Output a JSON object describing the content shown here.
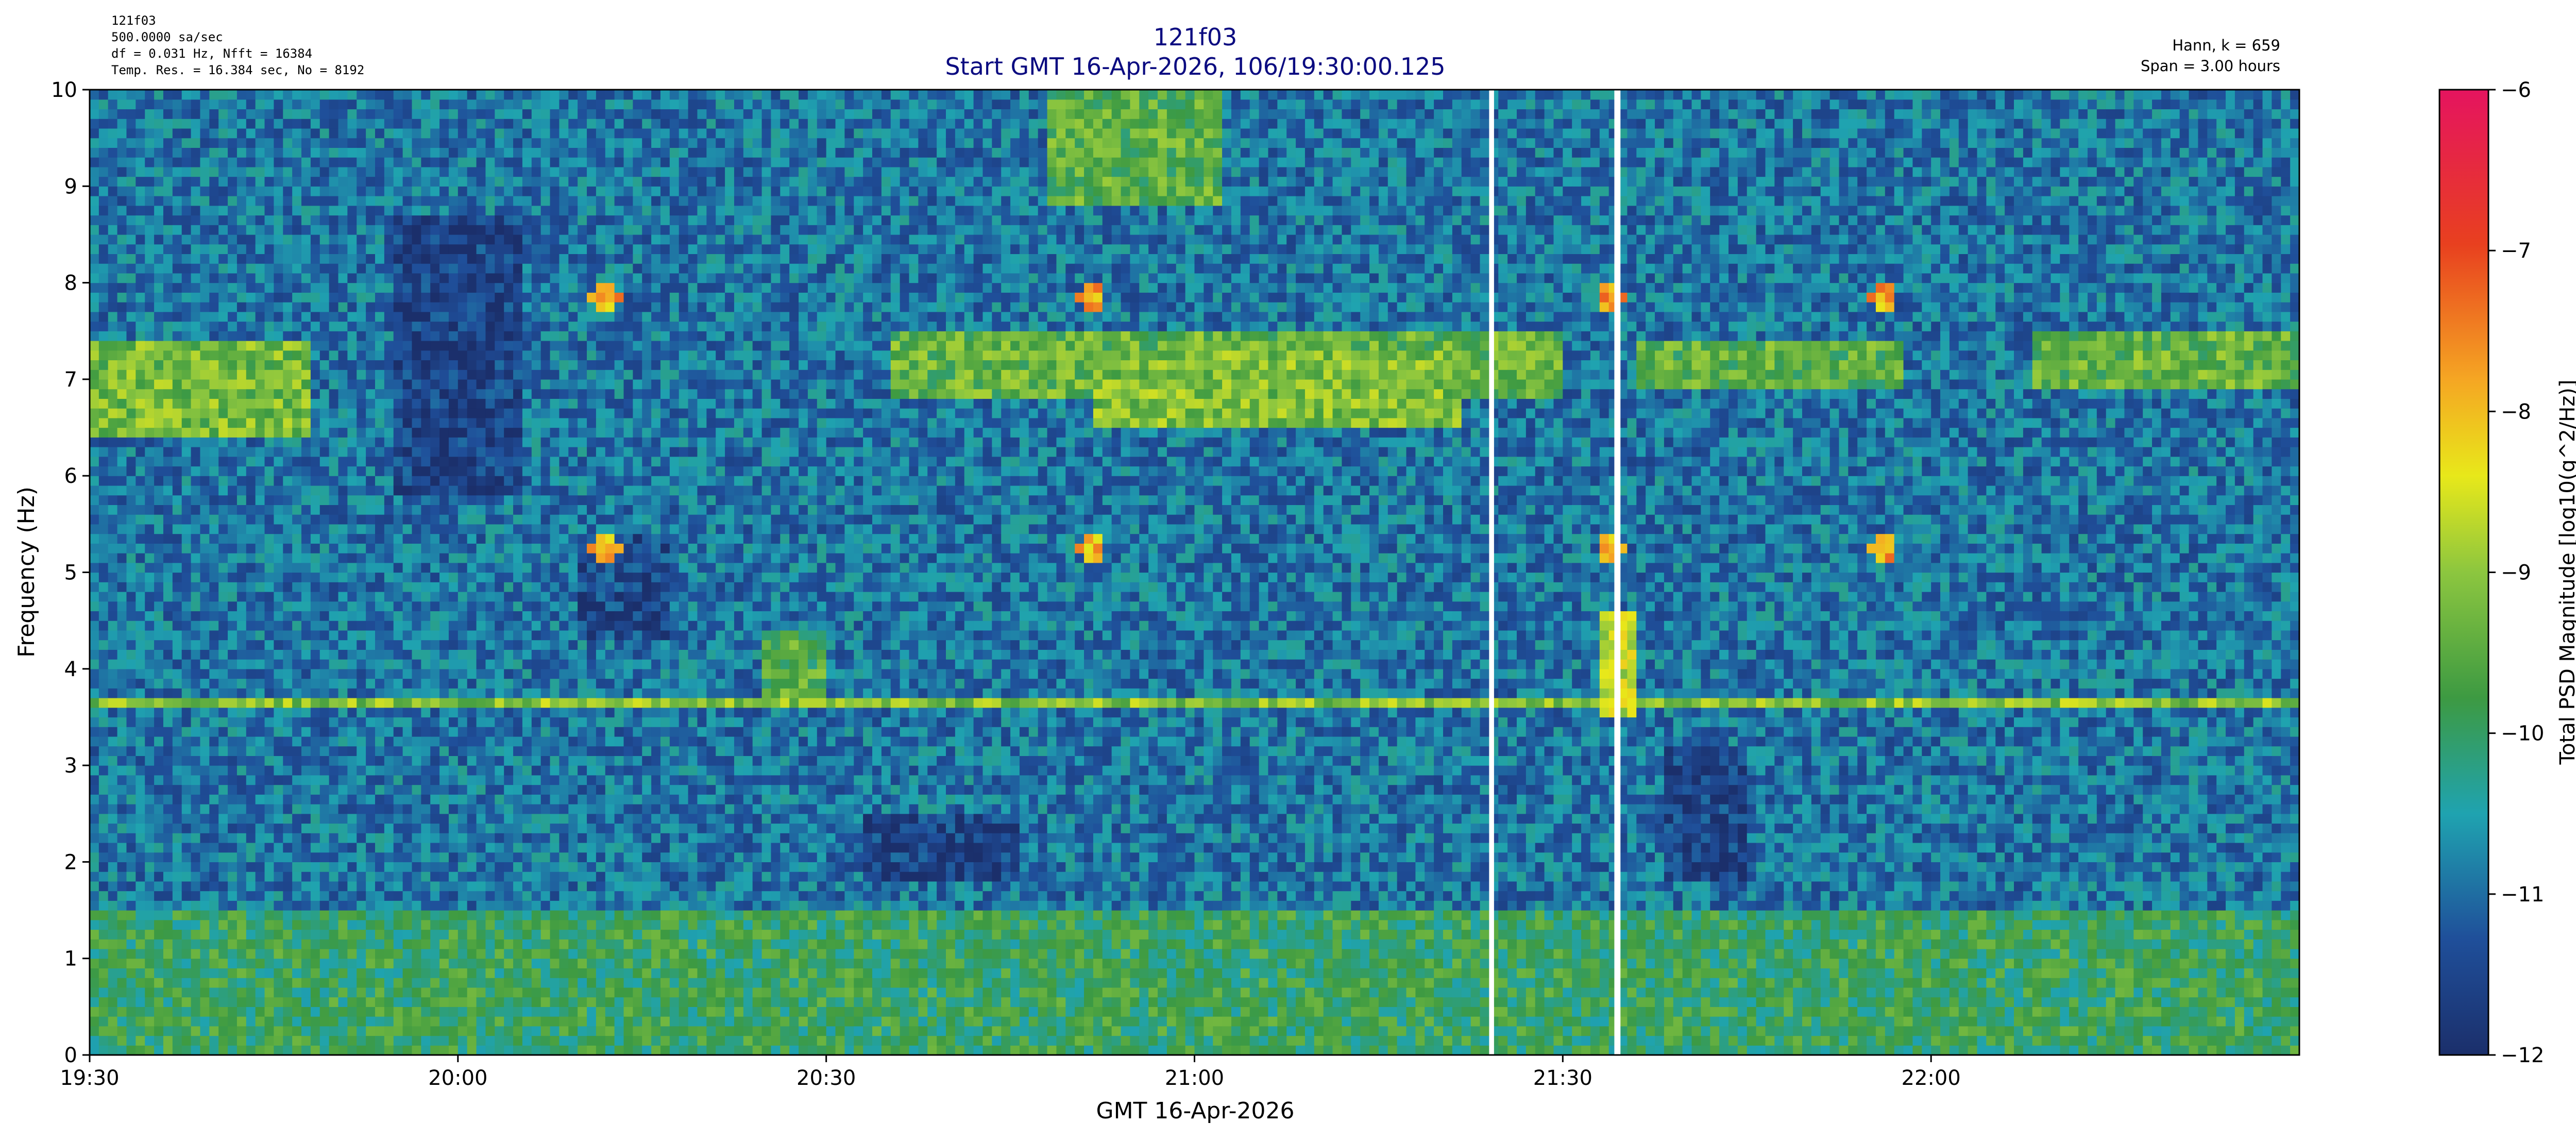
{
  "header": {
    "left_lines": [
      "121f03",
      "500.0000 sa/sec",
      "df = 0.031 Hz,  Nfft = 16384",
      "Temp. Res. = 16.384 sec, No = 8192"
    ],
    "title": "121f03",
    "subtitle": "Start GMT 16-Apr-2026, 106/19:30:00.125",
    "right_lines": [
      "Hann, k = 659",
      "Span = 3.00 hours"
    ]
  },
  "colors": {
    "title": "#0a0a80",
    "colormap": [
      "#1b2f6b",
      "#1f4f9a",
      "#1fa3b0",
      "#3d9a42",
      "#8cc63f",
      "#e8e81a",
      "#f5a623",
      "#e8401f",
      "#e5145f"
    ]
  },
  "chart_data": {
    "type": "heatmap",
    "xlabel": "GMT 16-Apr-2026",
    "ylabel": "Frequency (Hz)",
    "xlim": [
      0,
      180
    ],
    "ylim": [
      0,
      10
    ],
    "x_ticks": [
      {
        "minute": 0,
        "label": "19:30"
      },
      {
        "minute": 30,
        "label": "20:00"
      },
      {
        "minute": 60,
        "label": "20:30"
      },
      {
        "minute": 90,
        "label": "21:00"
      },
      {
        "minute": 120,
        "label": "21:30"
      },
      {
        "minute": 150,
        "label": "22:00"
      }
    ],
    "y_ticks": [
      0,
      1,
      2,
      3,
      4,
      5,
      6,
      7,
      8,
      9,
      10
    ],
    "colorbar": {
      "label": "Total PSD Magnitude [log10(g^2/Hz)]",
      "range": [
        -12,
        -6
      ],
      "ticks": [
        -12,
        -11,
        -10,
        -9,
        -8,
        -7,
        -6
      ]
    },
    "baseline_level": -10.9,
    "features": [
      {
        "kind": "hband",
        "freq": 3.65,
        "width": 0.05,
        "level": -9.0
      },
      {
        "kind": "band",
        "t0": 0,
        "t1": 18,
        "f0": 6.4,
        "f1": 7.4,
        "level": -9.2
      },
      {
        "kind": "band",
        "t0": 65,
        "t1": 120,
        "f0": 6.8,
        "f1": 7.5,
        "level": -9.4
      },
      {
        "kind": "band",
        "t0": 82,
        "t1": 112,
        "f0": 6.5,
        "f1": 7.3,
        "level": -9.1
      },
      {
        "kind": "band",
        "t0": 126,
        "t1": 148,
        "f0": 6.9,
        "f1": 7.4,
        "level": -9.5
      },
      {
        "kind": "band",
        "t0": 158,
        "t1": 180,
        "f0": 6.9,
        "f1": 7.5,
        "level": -9.4
      },
      {
        "kind": "band",
        "t0": 0,
        "t1": 180,
        "f0": 0,
        "f1": 1.5,
        "level": -9.9
      },
      {
        "kind": "band",
        "t0": 78,
        "t1": 92,
        "f0": 8.8,
        "f1": 10,
        "level": -9.5
      },
      {
        "kind": "band",
        "t0": 25,
        "t1": 35,
        "f0": 5.8,
        "f1": 8.7,
        "level": -11.6
      },
      {
        "kind": "band",
        "t0": 40,
        "t1": 47,
        "f0": 4.3,
        "f1": 5.4,
        "level": -11.5
      },
      {
        "kind": "band",
        "t0": 128,
        "t1": 135,
        "f0": 1.8,
        "f1": 3.2,
        "level": -11.6
      },
      {
        "kind": "band",
        "t0": 63,
        "t1": 76,
        "f0": 1.8,
        "f1": 2.5,
        "level": -11.6
      },
      {
        "kind": "band",
        "t0": 55,
        "t1": 60,
        "f0": 3.7,
        "f1": 4.4,
        "level": -9.6
      },
      {
        "kind": "band",
        "t0": 123,
        "t1": 126,
        "f0": 3.5,
        "f1": 4.6,
        "level": -8.6
      },
      {
        "kind": "spot",
        "t": 42,
        "f": 7.85,
        "level": -7.6
      },
      {
        "kind": "spot",
        "t": 42,
        "f": 5.25,
        "level": -7.7
      },
      {
        "kind": "spot",
        "t": 81.5,
        "f": 7.85,
        "level": -7.6
      },
      {
        "kind": "spot",
        "t": 81.5,
        "f": 5.25,
        "level": -7.7
      },
      {
        "kind": "spot",
        "t": 124,
        "f": 7.85,
        "level": -7.6
      },
      {
        "kind": "spot",
        "t": 124,
        "f": 5.25,
        "level": -7.7
      },
      {
        "kind": "spot",
        "t": 146,
        "f": 7.85,
        "level": -7.6
      },
      {
        "kind": "spot",
        "t": 146,
        "f": 5.25,
        "level": -7.7
      }
    ],
    "gaps": [
      [
        114.0,
        114.4
      ],
      [
        124.2,
        124.7
      ]
    ]
  }
}
